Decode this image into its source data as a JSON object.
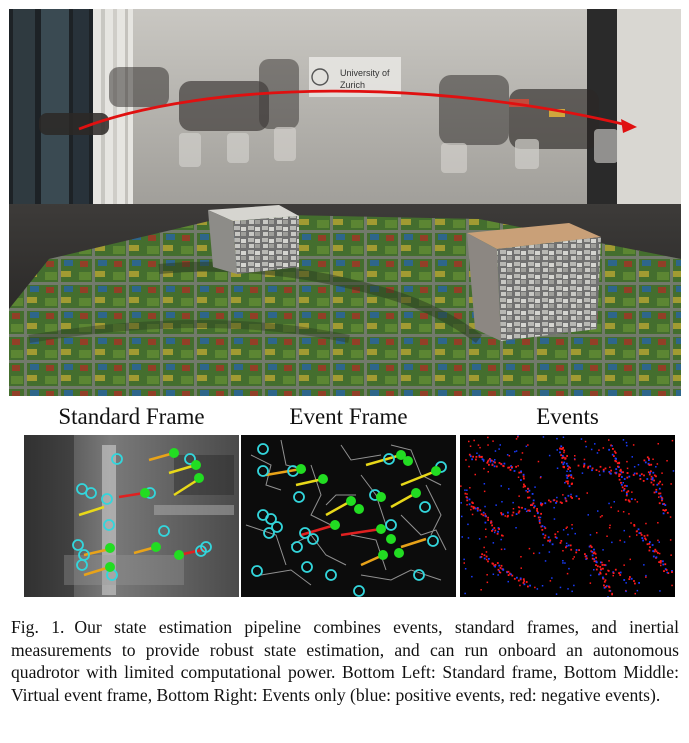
{
  "photo": {
    "logo_text_line1": "University of",
    "logo_text_line2": "Zurich"
  },
  "panels": [
    {
      "title": "Standard Frame"
    },
    {
      "title": "Event Frame"
    },
    {
      "title": "Events"
    }
  ],
  "caption": {
    "label": "Fig. 1.",
    "text": "Our state estimation pipeline combines events, standard frames, and inertial measurements to provide robust state estimation, and can run onboard an autonomous quadrotor with limited computational power. Bottom Left: Standard frame, Bottom Middle: Virtual event frame, Bottom Right: Events only (blue: positive events, red: negative events)."
  },
  "colors": {
    "trajectory": "#e01010",
    "feature_circle": "#33d6dc",
    "tracked_point": "#22dd22",
    "event_positive": "#1a3cff",
    "event_negative": "#ff1a1a"
  }
}
